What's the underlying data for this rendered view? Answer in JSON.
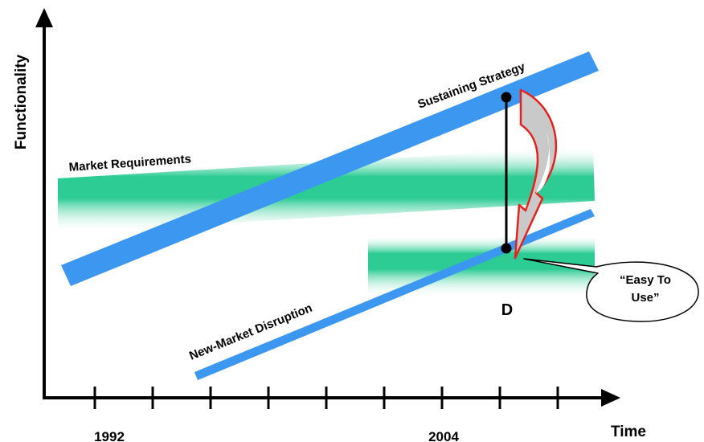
{
  "axes": {
    "y_label": "Functionality",
    "x_label": "Time",
    "tick_labels": [
      "1992",
      "2004"
    ]
  },
  "bands": {
    "market_requirements": "Market Requirements",
    "sustaining_strategy": "Sustaining Strategy",
    "new_market_disruption": "New-Market Disruption"
  },
  "point_label": "D",
  "callout": {
    "line1": "“Easy To",
    "line2": "Use”"
  },
  "colors": {
    "sustaining_band": "#3b97f0",
    "market_band": "#1ec88c",
    "disruption_fill": "#1ec88c",
    "arrow_outline": "#e8201c",
    "arrow_fill": "#c8c8c8"
  }
}
